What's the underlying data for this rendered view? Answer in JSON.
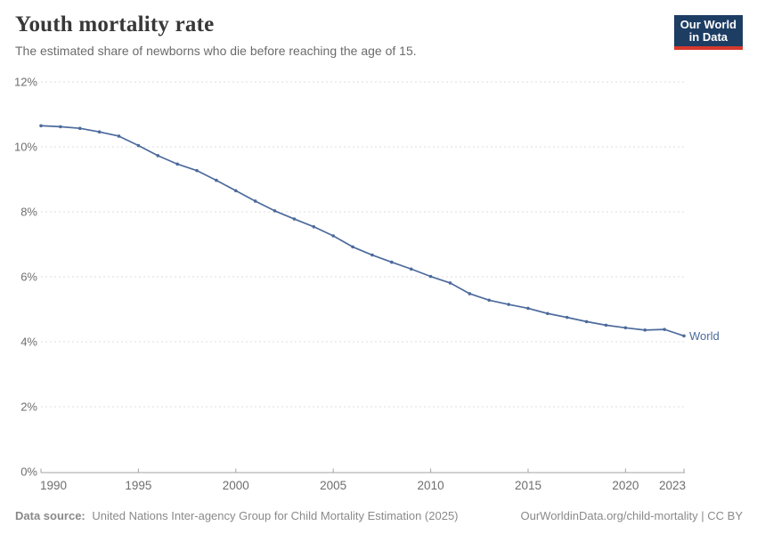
{
  "header": {
    "title": "Youth mortality rate",
    "subtitle": "The estimated share of newborns who die before reaching the age of 15."
  },
  "logo": {
    "line1": "Our World",
    "line2": "in Data",
    "bg_color": "#1d3d63",
    "bar_color": "#d7382c",
    "text_color": "#ffffff"
  },
  "chart_data": {
    "type": "line",
    "title": "Youth mortality rate",
    "x": [
      1990,
      1991,
      1992,
      1993,
      1994,
      1995,
      1996,
      1997,
      1998,
      1999,
      2000,
      2001,
      2002,
      2003,
      2004,
      2005,
      2006,
      2007,
      2008,
      2009,
      2010,
      2011,
      2012,
      2013,
      2014,
      2015,
      2016,
      2017,
      2018,
      2019,
      2020,
      2021,
      2022,
      2023
    ],
    "series": [
      {
        "name": "World",
        "color": "#4C6A9C",
        "values": [
          10.65,
          10.62,
          10.57,
          10.46,
          10.33,
          10.04,
          9.73,
          9.47,
          9.27,
          8.97,
          8.65,
          8.33,
          8.03,
          7.78,
          7.54,
          7.26,
          6.92,
          6.67,
          6.45,
          6.24,
          6.01,
          5.81,
          5.48,
          5.28,
          5.15,
          5.03,
          4.87,
          4.75,
          4.62,
          4.51,
          4.43,
          4.36,
          4.38,
          4.18
        ]
      }
    ],
    "ylim": [
      0,
      12
    ],
    "yticks": [
      0,
      2,
      4,
      6,
      8,
      10,
      12
    ],
    "ytick_suffix": "%",
    "xticks": [
      1990,
      1995,
      2000,
      2005,
      2010,
      2015,
      2020,
      2023
    ],
    "grid": "horizontal-dashed",
    "legend": "series-end-label",
    "xlabel": "",
    "ylabel": ""
  },
  "footer": {
    "datasource_label": "Data source:",
    "datasource_value": "United Nations Inter-agency Group for Child Mortality Estimation (2025)",
    "citation": "OurWorldinData.org/child-mortality | CC BY"
  },
  "colors": {
    "accent": "#4C6A9C",
    "grid": "#dedede",
    "axis": "#a3a3a3",
    "tick_label": "#6e6e6e"
  }
}
